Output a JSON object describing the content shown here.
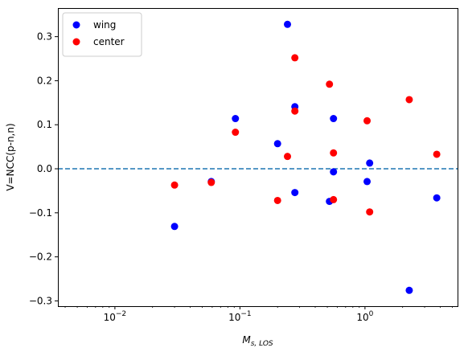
{
  "chart_data": {
    "type": "scatter",
    "xscale": "log",
    "xlim": [
      0.0035,
      5.5
    ],
    "ylim": [
      -0.312,
      0.365
    ],
    "xticks": [
      {
        "value": 0.01,
        "base": "10",
        "exp": "−2"
      },
      {
        "value": 0.1,
        "base": "10",
        "exp": "−1"
      },
      {
        "value": 1,
        "base": "10",
        "exp": "0"
      }
    ],
    "yticks": [
      {
        "value": 0.3,
        "label": "0.3"
      },
      {
        "value": 0.2,
        "label": "0.2"
      },
      {
        "value": 0.1,
        "label": "0.1"
      },
      {
        "value": 0.0,
        "label": "0.0"
      },
      {
        "value": -0.1,
        "label": "−0.1"
      },
      {
        "value": -0.2,
        "label": "−0.2"
      },
      {
        "value": -0.3,
        "label": "−0.3"
      }
    ],
    "xlabel": {
      "main": "M",
      "sub": "s, LOS"
    },
    "ylabel": "V=NCC(p-n,n)",
    "reference_line": {
      "y": 0.0,
      "style": "dashed",
      "color": "#1f77b4"
    },
    "legend": {
      "placement": "top-left"
    },
    "series": [
      {
        "name": "wing",
        "color": "#0000ff",
        "points": [
          {
            "x": 0.03,
            "y": -0.131
          },
          {
            "x": 0.059,
            "y": -0.029
          },
          {
            "x": 0.092,
            "y": 0.114
          },
          {
            "x": 0.2,
            "y": 0.057
          },
          {
            "x": 0.24,
            "y": 0.328
          },
          {
            "x": 0.275,
            "y": 0.141
          },
          {
            "x": 0.275,
            "y": -0.054
          },
          {
            "x": 0.52,
            "y": -0.074
          },
          {
            "x": 0.56,
            "y": 0.114
          },
          {
            "x": 0.56,
            "y": -0.007
          },
          {
            "x": 1.04,
            "y": -0.029
          },
          {
            "x": 1.09,
            "y": 0.013
          },
          {
            "x": 2.26,
            "y": -0.276
          },
          {
            "x": 3.75,
            "y": -0.066
          }
        ]
      },
      {
        "name": "center",
        "color": "#ff0000",
        "points": [
          {
            "x": 0.03,
            "y": -0.037
          },
          {
            "x": 0.059,
            "y": -0.031
          },
          {
            "x": 0.092,
            "y": 0.083
          },
          {
            "x": 0.2,
            "y": -0.072
          },
          {
            "x": 0.24,
            "y": 0.028
          },
          {
            "x": 0.275,
            "y": 0.252
          },
          {
            "x": 0.275,
            "y": 0.131
          },
          {
            "x": 0.52,
            "y": 0.192
          },
          {
            "x": 0.56,
            "y": 0.036
          },
          {
            "x": 0.56,
            "y": -0.07
          },
          {
            "x": 1.04,
            "y": 0.109
          },
          {
            "x": 1.09,
            "y": -0.098
          },
          {
            "x": 2.26,
            "y": 0.157
          },
          {
            "x": 3.75,
            "y": 0.033
          }
        ]
      }
    ]
  }
}
